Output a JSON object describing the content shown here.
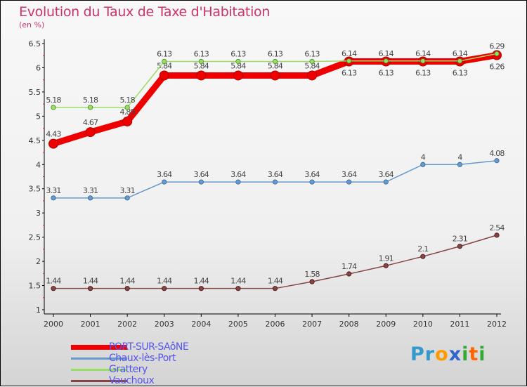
{
  "chart_data": {
    "type": "line",
    "title": "Evolution du Taux de Taxe d'Habitation",
    "subtitle": "(en %)",
    "xlabel": "",
    "ylabel": "",
    "x": [
      "2000",
      "2001",
      "2002",
      "2003",
      "2004",
      "2005",
      "2006",
      "2007",
      "2008",
      "2009",
      "2010",
      "2011",
      "2012"
    ],
    "ylim": [
      1,
      6.5
    ],
    "yticks": [
      "1",
      "1.5",
      "2",
      "2.5",
      "3",
      "3.5",
      "4",
      "4.5",
      "5",
      "5.5",
      "6",
      "6.5"
    ],
    "grid": false,
    "legend_position": "bottom-left",
    "series": [
      {
        "name": "PORT-SUR-SAôNE",
        "color": "#ee0000",
        "values": [
          4.43,
          4.67,
          4.89,
          5.84,
          5.84,
          5.84,
          5.84,
          5.84,
          6.13,
          6.13,
          6.13,
          6.13,
          6.26
        ]
      },
      {
        "name": "Chaux-lès-Port",
        "color": "#6699cc",
        "values": [
          3.31,
          3.31,
          3.31,
          3.64,
          3.64,
          3.64,
          3.64,
          3.64,
          3.64,
          3.64,
          4,
          4,
          4.08
        ]
      },
      {
        "name": "Grattery",
        "color": "#99dd66",
        "values": [
          5.18,
          5.18,
          5.18,
          6.13,
          6.13,
          6.13,
          6.13,
          6.13,
          6.14,
          6.14,
          6.14,
          6.14,
          6.29
        ]
      },
      {
        "name": "Vauchoux",
        "color": "#884444",
        "values": [
          1.44,
          1.44,
          1.44,
          1.44,
          1.44,
          1.44,
          1.44,
          1.58,
          1.74,
          1.91,
          2.1,
          2.31,
          2.54
        ]
      }
    ]
  },
  "logo": {
    "text": "Proxiti",
    "letters": [
      "P",
      "r",
      "o",
      "x",
      "i",
      "t",
      "i"
    ],
    "colors": [
      "#3399cc",
      "#3399cc",
      "#ff9900",
      "#3366cc",
      "#33aa33",
      "#ff6600",
      "#33aa33"
    ]
  }
}
